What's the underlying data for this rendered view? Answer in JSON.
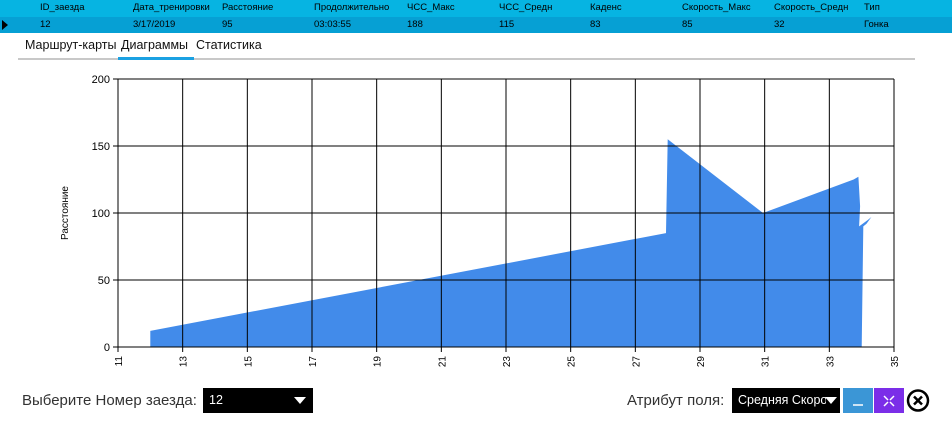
{
  "grid": {
    "headers": [
      "ID_заезда",
      "Дата_тренировки",
      "Расстояние",
      "Продолжительно",
      "ЧСС_Макс",
      "ЧСС_Средн",
      "Каденс",
      "Скорость_Макс",
      "Скорость_Средн",
      "Тип"
    ],
    "row": [
      "12",
      "3/17/2019",
      "95",
      "03:03:55",
      "188",
      "115",
      "83",
      "85",
      "32",
      "Гонка"
    ]
  },
  "tabs": [
    "Маршрут-карты",
    "Диаграммы",
    "Статистика"
  ],
  "active_tab": "Диаграммы",
  "chart_data": {
    "type": "area",
    "xlabel": "",
    "ylabel": "Расстояние",
    "xlim": [
      11,
      35
    ],
    "ylim": [
      0,
      200
    ],
    "x_ticks": [
      "11",
      "13",
      "15",
      "17",
      "19",
      "21",
      "23",
      "25",
      "27",
      "29",
      "31",
      "33",
      "35"
    ],
    "y_ticks": [
      "0",
      "50",
      "100",
      "150",
      "200"
    ],
    "grid": true,
    "series": [
      {
        "color": "#428bea",
        "points": [
          [
            12,
            12
          ],
          [
            27.95,
            85
          ],
          [
            28,
            155
          ],
          [
            30.95,
            100
          ],
          [
            33.75,
            125
          ],
          [
            33.9,
            127
          ],
          [
            33.95,
            105
          ],
          [
            33.92,
            90
          ],
          [
            34.2,
            95
          ],
          [
            34.3,
            97
          ],
          [
            34.15,
            92
          ],
          [
            34.05,
            90
          ],
          [
            34,
            0
          ],
          [
            12,
            0
          ]
        ]
      }
    ]
  },
  "controls": {
    "race_label": "Выберите Номер заезда:",
    "race_value": "12",
    "attr_label": "Атрибут поля:",
    "attr_value": "Средняя Скорость"
  },
  "colors": {
    "header_bg": "#06b4e2",
    "row_bg": "#06a0d4",
    "accent": "#1ba1e2",
    "area": "#428bea",
    "minimize_btn": "#3b96d6",
    "restore_btn": "#7b2ee8"
  },
  "icons": {
    "minimize": "minimize-icon",
    "restore": "restore-icon",
    "close": "close-circle-icon"
  }
}
